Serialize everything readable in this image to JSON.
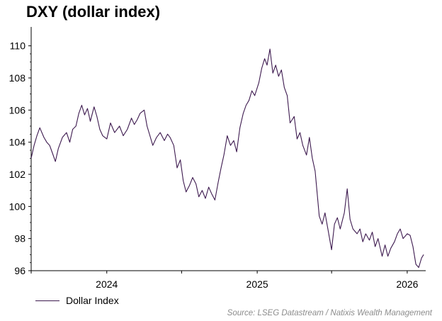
{
  "chart_data": {
    "type": "line",
    "title": "DXY (dollar index)",
    "xlabel": "",
    "ylabel": "",
    "ylim": [
      96,
      111
    ],
    "xlim": [
      "2023-07-01",
      "2026-02-15"
    ],
    "y_ticks": [
      96,
      98,
      100,
      102,
      104,
      106,
      108,
      110
    ],
    "x_tick_labels": [
      {
        "label": "2024",
        "date": "2024-01-01"
      },
      {
        "label": "2025",
        "date": "2025-01-01"
      },
      {
        "label": "2026",
        "date": "2026-01-01"
      }
    ],
    "grid": false,
    "legend_position": "bottom-left",
    "series": [
      {
        "name": "Dollar Index",
        "color": "#3d1a4f",
        "points": [
          [
            "2023-07-01",
            103.0
          ],
          [
            "2023-07-08",
            103.8
          ],
          [
            "2023-07-15",
            104.4
          ],
          [
            "2023-07-22",
            104.9
          ],
          [
            "2023-08-01",
            104.3
          ],
          [
            "2023-08-08",
            104.0
          ],
          [
            "2023-08-15",
            103.8
          ],
          [
            "2023-08-22",
            103.3
          ],
          [
            "2023-08-29",
            102.8
          ],
          [
            "2023-09-05",
            103.6
          ],
          [
            "2023-09-15",
            104.3
          ],
          [
            "2023-09-25",
            104.6
          ],
          [
            "2023-10-03",
            104.0
          ],
          [
            "2023-10-10",
            104.8
          ],
          [
            "2023-10-18",
            105.0
          ],
          [
            "2023-10-25",
            105.8
          ],
          [
            "2023-11-01",
            106.3
          ],
          [
            "2023-11-08",
            105.7
          ],
          [
            "2023-11-15",
            106.1
          ],
          [
            "2023-11-22",
            105.3
          ],
          [
            "2023-12-01",
            106.2
          ],
          [
            "2023-12-08",
            105.6
          ],
          [
            "2023-12-15",
            104.8
          ],
          [
            "2023-12-22",
            104.4
          ],
          [
            "2024-01-01",
            104.2
          ],
          [
            "2024-01-10",
            105.2
          ],
          [
            "2024-01-20",
            104.6
          ],
          [
            "2024-02-01",
            105.0
          ],
          [
            "2024-02-10",
            104.4
          ],
          [
            "2024-02-20",
            104.8
          ],
          [
            "2024-03-01",
            105.5
          ],
          [
            "2024-03-08",
            105.1
          ],
          [
            "2024-03-15",
            105.4
          ],
          [
            "2024-03-22",
            105.8
          ],
          [
            "2024-04-01",
            106.0
          ],
          [
            "2024-04-08",
            105.0
          ],
          [
            "2024-04-15",
            104.4
          ],
          [
            "2024-04-22",
            103.8
          ],
          [
            "2024-05-01",
            104.3
          ],
          [
            "2024-05-10",
            104.6
          ],
          [
            "2024-05-20",
            104.1
          ],
          [
            "2024-05-28",
            104.5
          ],
          [
            "2024-06-03",
            104.3
          ],
          [
            "2024-06-12",
            103.8
          ],
          [
            "2024-06-20",
            102.4
          ],
          [
            "2024-06-28",
            102.9
          ],
          [
            "2024-07-05",
            101.6
          ],
          [
            "2024-07-12",
            100.9
          ],
          [
            "2024-07-20",
            101.3
          ],
          [
            "2024-07-28",
            101.8
          ],
          [
            "2024-08-05",
            101.4
          ],
          [
            "2024-08-12",
            100.6
          ],
          [
            "2024-08-20",
            101.0
          ],
          [
            "2024-08-28",
            100.5
          ],
          [
            "2024-09-05",
            101.2
          ],
          [
            "2024-09-12",
            100.8
          ],
          [
            "2024-09-20",
            100.4
          ],
          [
            "2024-09-28",
            101.5
          ],
          [
            "2024-10-05",
            102.4
          ],
          [
            "2024-10-12",
            103.2
          ],
          [
            "2024-10-20",
            104.4
          ],
          [
            "2024-10-28",
            103.8
          ],
          [
            "2024-11-05",
            104.1
          ],
          [
            "2024-11-12",
            103.4
          ],
          [
            "2024-11-20",
            104.9
          ],
          [
            "2024-11-28",
            105.8
          ],
          [
            "2024-12-05",
            106.3
          ],
          [
            "2024-12-12",
            106.6
          ],
          [
            "2024-12-19",
            107.2
          ],
          [
            "2024-12-26",
            106.9
          ],
          [
            "2025-01-05",
            107.7
          ],
          [
            "2025-01-12",
            108.6
          ],
          [
            "2025-01-19",
            109.2
          ],
          [
            "2025-01-25",
            108.8
          ],
          [
            "2025-02-01",
            109.8
          ],
          [
            "2025-02-08",
            108.3
          ],
          [
            "2025-02-15",
            108.8
          ],
          [
            "2025-02-22",
            108.1
          ],
          [
            "2025-03-01",
            108.5
          ],
          [
            "2025-03-08",
            107.4
          ],
          [
            "2025-03-15",
            106.9
          ],
          [
            "2025-03-22",
            105.2
          ],
          [
            "2025-04-01",
            105.6
          ],
          [
            "2025-04-08",
            104.2
          ],
          [
            "2025-04-15",
            104.6
          ],
          [
            "2025-04-22",
            103.8
          ],
          [
            "2025-05-01",
            103.2
          ],
          [
            "2025-05-08",
            104.3
          ],
          [
            "2025-05-15",
            103.0
          ],
          [
            "2025-05-22",
            102.2
          ],
          [
            "2025-06-01",
            99.4
          ],
          [
            "2025-06-08",
            98.9
          ],
          [
            "2025-06-15",
            99.6
          ],
          [
            "2025-06-22",
            98.6
          ],
          [
            "2025-07-01",
            97.3
          ],
          [
            "2025-07-08",
            98.9
          ],
          [
            "2025-07-15",
            99.3
          ],
          [
            "2025-07-22",
            98.6
          ],
          [
            "2025-08-01",
            99.6
          ],
          [
            "2025-08-08",
            101.1
          ],
          [
            "2025-08-15",
            99.2
          ],
          [
            "2025-08-22",
            98.6
          ],
          [
            "2025-09-01",
            98.3
          ],
          [
            "2025-09-08",
            98.6
          ],
          [
            "2025-09-15",
            97.8
          ],
          [
            "2025-09-22",
            98.3
          ],
          [
            "2025-10-01",
            97.9
          ],
          [
            "2025-10-08",
            98.4
          ],
          [
            "2025-10-15",
            97.5
          ],
          [
            "2025-10-22",
            98.0
          ],
          [
            "2025-11-01",
            96.9
          ],
          [
            "2025-11-08",
            97.6
          ],
          [
            "2025-11-15",
            96.9
          ],
          [
            "2025-11-22",
            97.4
          ],
          [
            "2025-12-01",
            97.8
          ],
          [
            "2025-12-08",
            98.3
          ],
          [
            "2025-12-15",
            98.6
          ],
          [
            "2025-12-22",
            98.0
          ],
          [
            "2026-01-01",
            98.3
          ],
          [
            "2026-01-08",
            98.2
          ],
          [
            "2026-01-15",
            97.5
          ],
          [
            "2026-01-22",
            96.4
          ],
          [
            "2026-01-29",
            96.2
          ],
          [
            "2026-02-05",
            96.8
          ],
          [
            "2026-02-10",
            97.0
          ]
        ]
      }
    ]
  },
  "legend": {
    "label": "Dollar Index",
    "color": "#3d1a4f"
  },
  "source": "Source: LSEG Datastream / Natixis Wealth Management"
}
